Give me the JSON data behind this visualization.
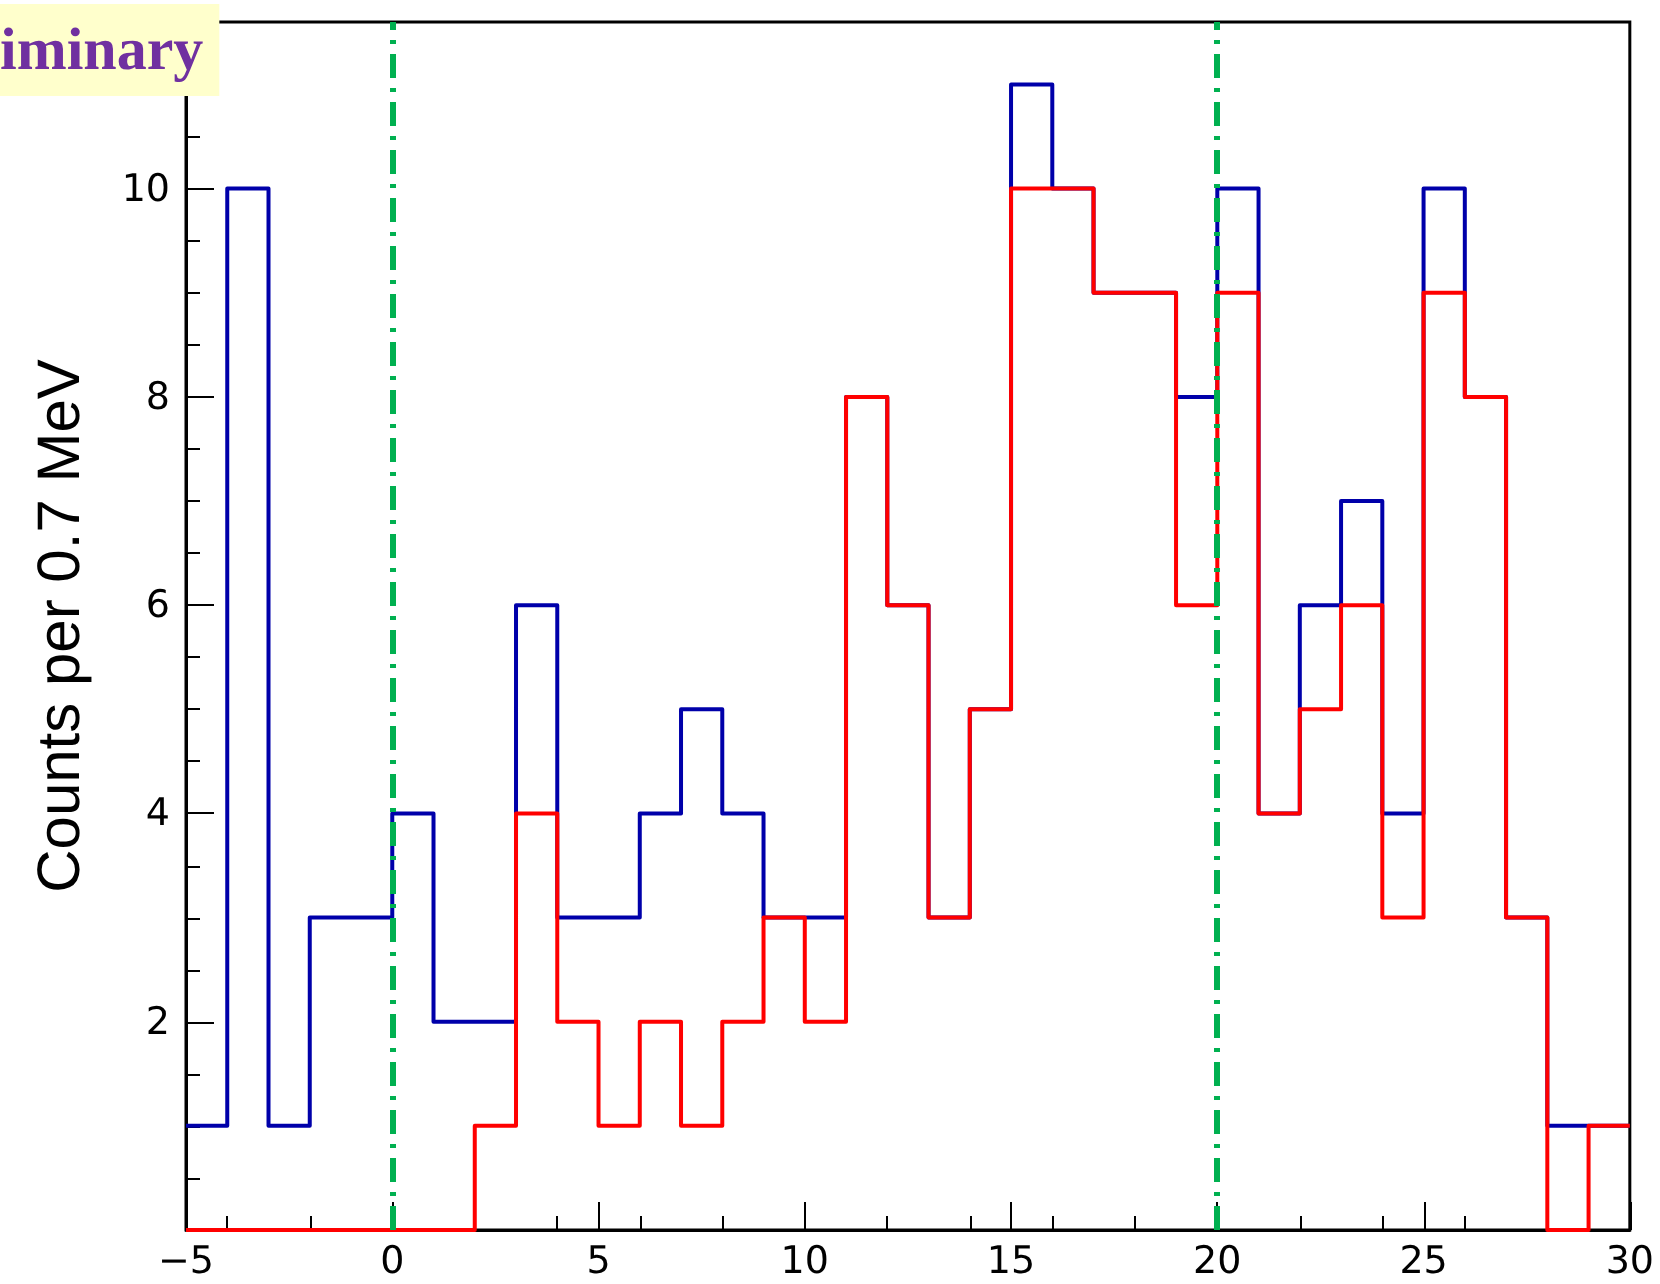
{
  "chart_data": {
    "type": "histogram",
    "ylabel": "Counts per 0.7 MeV",
    "annotations": [
      "iminary"
    ],
    "bins": [
      -5,
      -4,
      -3,
      -2,
      -1,
      0,
      1,
      2,
      3,
      4,
      5,
      6,
      7,
      8,
      9,
      10,
      11,
      12,
      13,
      14,
      15,
      16,
      17,
      18,
      19,
      20,
      21,
      22,
      23,
      24,
      25,
      26,
      27,
      28,
      29,
      30
    ],
    "series": [
      {
        "color": "#0000aa",
        "values": [
          1,
          10,
          1,
          3,
          3,
          4,
          2,
          2,
          6,
          3,
          3,
          4,
          5,
          4,
          3,
          3,
          8,
          6,
          3,
          5,
          11,
          10,
          9,
          9,
          8,
          10,
          4,
          6,
          7,
          4,
          10,
          8,
          3,
          1,
          1
        ]
      },
      {
        "color": "#ff0000",
        "values": [
          0,
          0,
          0,
          0,
          0,
          0,
          0,
          1,
          4,
          2,
          1,
          2,
          1,
          2,
          3,
          2,
          8,
          6,
          3,
          5,
          10,
          10,
          9,
          9,
          6,
          9,
          4,
          5,
          6,
          3,
          9,
          8,
          3,
          0,
          1
        ]
      }
    ],
    "xlim": [
      -5,
      30
    ],
    "xticks": [
      {
        "value": -5,
        "label": "−5"
      },
      0,
      5,
      10,
      15,
      20,
      25,
      30
    ],
    "ylim": [
      0,
      11.6
    ],
    "yticks": [
      2,
      4,
      6,
      8,
      10
    ],
    "ref_lines": [
      {
        "axis": "x",
        "value": 0,
        "color": "#00b050",
        "line_style": "dashdot"
      },
      {
        "axis": "x",
        "value": 20,
        "color": "#00b050",
        "line_style": "dashdot"
      }
    ],
    "grid": false
  }
}
